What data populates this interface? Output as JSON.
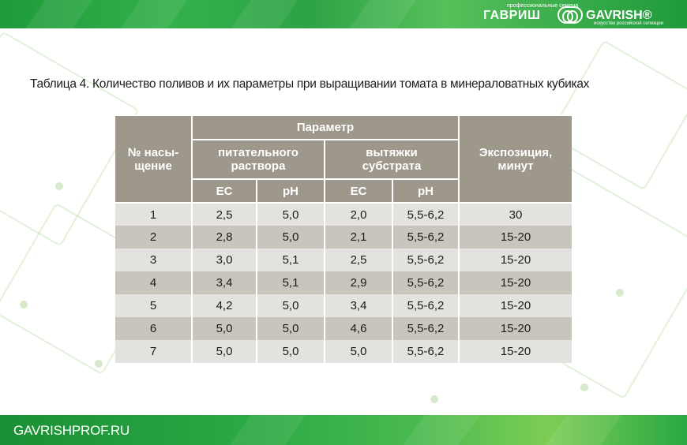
{
  "logo": {
    "tagline_top": "профессиональные семена",
    "brand_ru": "ГАВРИШ",
    "brand_en": "GAVRISH®",
    "tagline_bottom": "искусство российской селекции"
  },
  "title": "Таблица 4. Количество поливов и их параметры при выращивании томата в минераловатных кубиках",
  "table": {
    "header": {
      "col_number": "№ насы-\nщение",
      "parameter": "Параметр",
      "nutrient": "питательного\nраствора",
      "extract": "вытяжки\nсубстрата",
      "exposure": "Экспозиция,\nминут",
      "ec_1": "ЕС",
      "ph_1": "рН",
      "ec_2": "ЕС",
      "ph_2": "рН"
    },
    "rows": [
      [
        "1",
        "2,5",
        "5,0",
        "2,0",
        "5,5-6,2",
        "30"
      ],
      [
        "2",
        "2,8",
        "5,0",
        "2,1",
        "5,5-6,2",
        "15-20"
      ],
      [
        "3",
        "3,0",
        "5,1",
        "2,5",
        "5,5-6,2",
        "15-20"
      ],
      [
        "4",
        "3,4",
        "5,1",
        "2,9",
        "5,5-6,2",
        "15-20"
      ],
      [
        "5",
        "4,2",
        "5,0",
        "3,4",
        "5,5-6,2",
        "15-20"
      ],
      [
        "6",
        "5,0",
        "5,0",
        "4,6",
        "5,5-6,2",
        "15-20"
      ],
      [
        "7",
        "5,0",
        "5,0",
        "5,0",
        "5,5-6,2",
        "15-20"
      ]
    ]
  },
  "footer": {
    "url": "GAVRISHPROF.RU"
  },
  "colors": {
    "brand_green": "#2aa843",
    "header_bg": "#9d988b",
    "row_light": "#e4e2de",
    "row_dark": "#c9c4bc"
  }
}
